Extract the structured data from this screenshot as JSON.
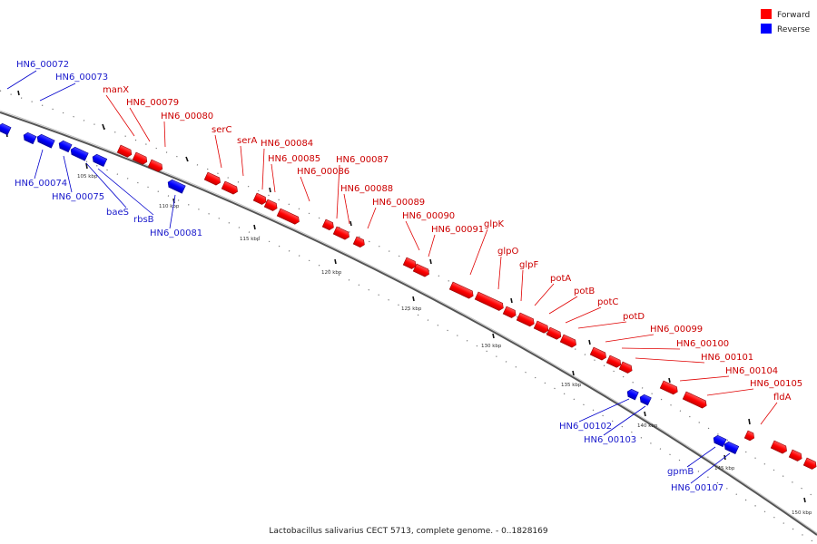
{
  "caption": "Lactobacillus salivarius CECT 5713, complete genome. - 0..1828169",
  "legend": [
    {
      "label": "Forward",
      "color": "#ff0000"
    },
    {
      "label": "Reverse",
      "color": "#0000ff"
    }
  ],
  "scale_ticks": [
    "105 kbp",
    "110 kbp",
    "115 kbp",
    "120 kbp",
    "125 kbp",
    "130 kbp",
    "135 kbp",
    "140 kbp",
    "145 kbp",
    "150 kbp"
  ],
  "reverse_labels": [
    "HN6_00072",
    "HN6_00073",
    "HN6_00074",
    "HN6_00075",
    "baeS",
    "rbsB",
    "HN6_00081",
    "HN6_00102",
    "HN6_00103",
    "gpmB",
    "HN6_00107"
  ],
  "forward_labels": [
    "manX",
    "HN6_00079",
    "HN6_00080",
    "serC",
    "serA",
    "HN6_00084",
    "HN6_00085",
    "HN6_00086",
    "HN6_00087",
    "HN6_00088",
    "HN6_00089",
    "HN6_00090",
    "HN6_00091",
    "glpK",
    "glpO",
    "glpF",
    "potA",
    "potB",
    "potC",
    "potD",
    "HN6_00099",
    "HN6_00100",
    "HN6_00101",
    "HN6_00104",
    "HN6_00105",
    "fldA"
  ]
}
